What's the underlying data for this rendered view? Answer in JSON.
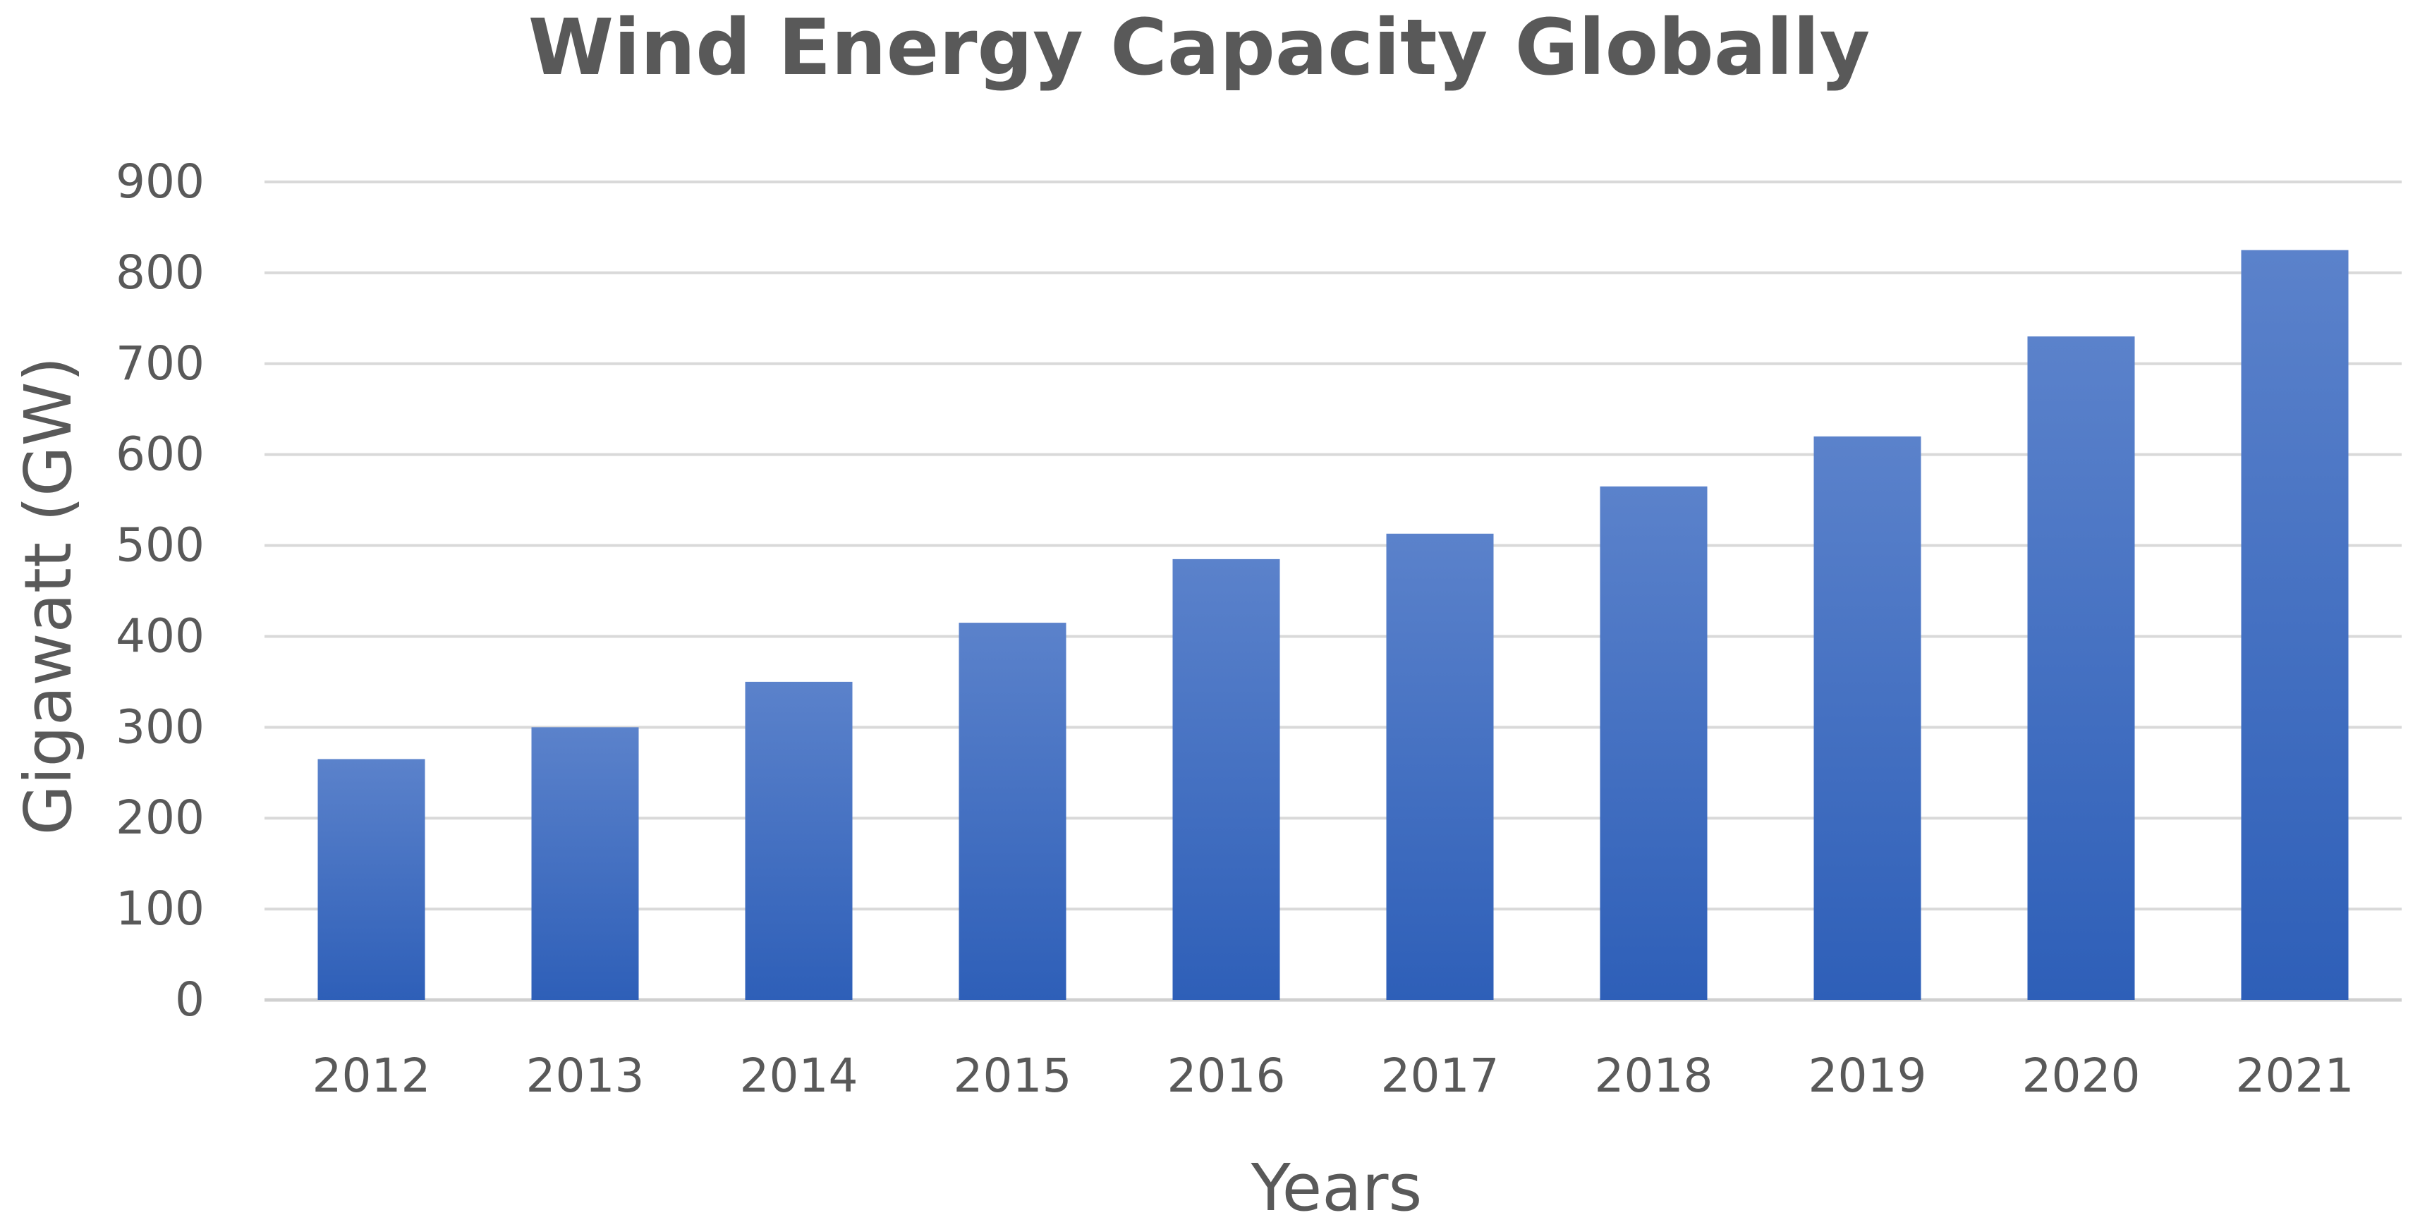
{
  "chart_data": {
    "type": "bar",
    "title": "Wind Energy Capacity Globally",
    "xlabel": "Years",
    "ylabel": "Gigawatt (GW)",
    "categories": [
      "2012",
      "2013",
      "2014",
      "2015",
      "2016",
      "2017",
      "2018",
      "2019",
      "2020",
      "2021"
    ],
    "values": [
      265,
      300,
      350,
      415,
      485,
      513,
      565,
      620,
      730,
      825
    ],
    "ylim": [
      0,
      900
    ],
    "yticks": [
      "0",
      "100",
      "200",
      "300",
      "400",
      "500",
      "600",
      "700",
      "800",
      "900"
    ],
    "grid": true,
    "legend": "none",
    "colors": {
      "bar_top": "#5b82cb",
      "bar_bottom": "#2e5fb8",
      "text": "#595959",
      "grid": "#d9d9d9"
    }
  }
}
